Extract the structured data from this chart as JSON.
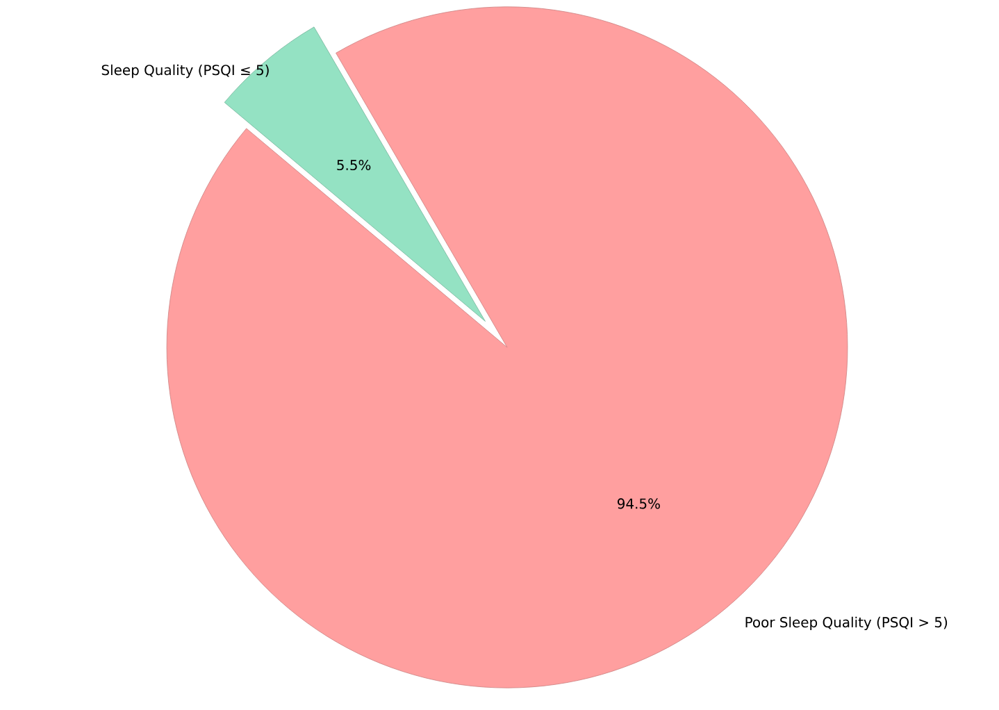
{
  "chart_data": {
    "type": "pie",
    "categories": [
      "Poor Sleep Quality (PSQI > 5)",
      "Sleep Quality (PSQI ≤ 5)"
    ],
    "values": [
      94.5,
      5.5
    ],
    "colors": [
      "#ff9f9f",
      "#94e2c3"
    ],
    "value_labels": [
      "94.5%",
      "5.5%"
    ]
  }
}
